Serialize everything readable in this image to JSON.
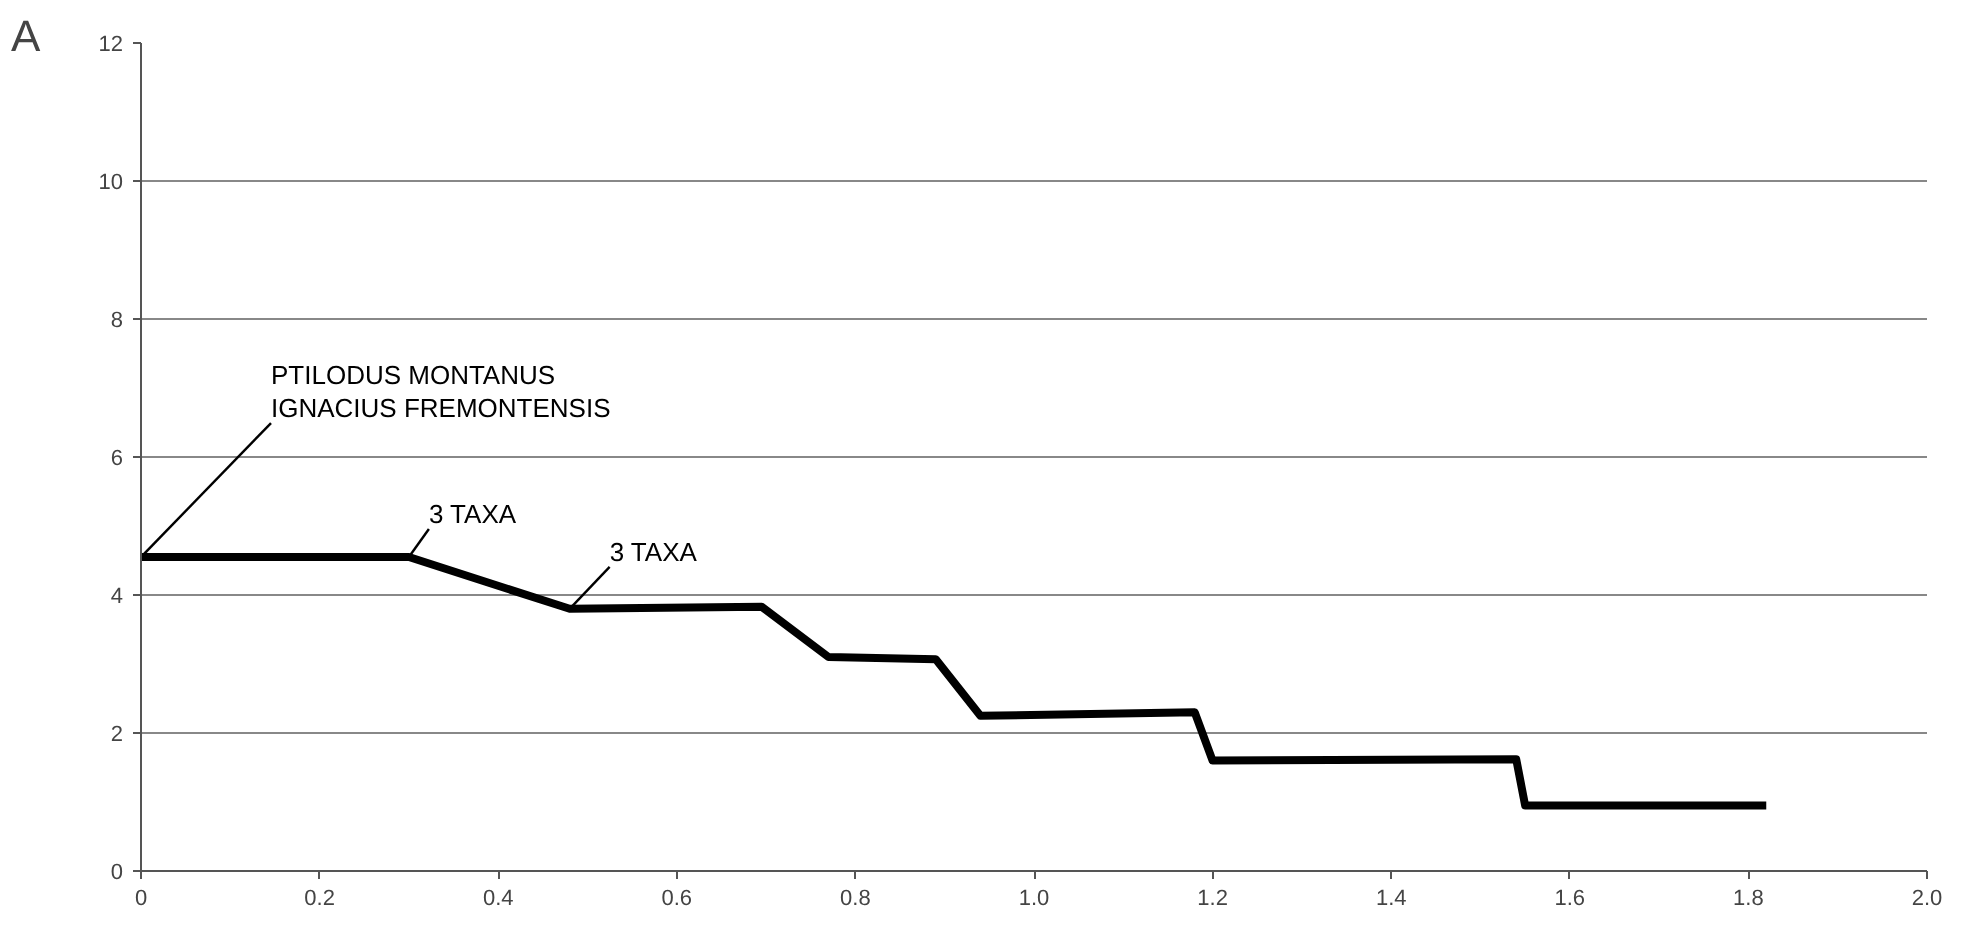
{
  "chart_data": {
    "type": "line",
    "title": "A",
    "x": [
      0,
      0.3,
      0.48,
      0.695,
      0.77,
      0.89,
      0.94,
      1.18,
      1.2,
      1.54,
      1.55,
      1.82
    ],
    "series": [
      {
        "color": "#000000",
        "values": [
          4.55,
          4.55,
          3.8,
          3.83,
          3.1,
          3.07,
          2.25,
          2.3,
          1.6,
          1.62,
          0.95,
          0.95
        ]
      }
    ],
    "xlim": [
      0,
      2.0
    ],
    "xticks": [
      0,
      0.2,
      0.4,
      0.6,
      0.8,
      {
        "value": 1.0,
        "label": "1.0"
      },
      1.2,
      1.4,
      1.6,
      1.8,
      {
        "value": 2.0,
        "label": "2.0"
      }
    ],
    "ylim": [
      0,
      12
    ],
    "yticks": [
      0,
      2,
      4,
      6,
      8,
      10,
      12
    ],
    "grid": "y",
    "marker": "none",
    "line_style": "solid",
    "annotations": [
      {
        "text": "PTILODUS MONTANUS\nIGNACIUS FREMONTENSIS",
        "x": 0,
        "y": 4.55
      },
      {
        "text": "3 TAXA",
        "x": 0.3,
        "y": 4.55
      },
      {
        "text": "3 TAXA",
        "x": 0.48,
        "y": 3.8
      }
    ]
  }
}
